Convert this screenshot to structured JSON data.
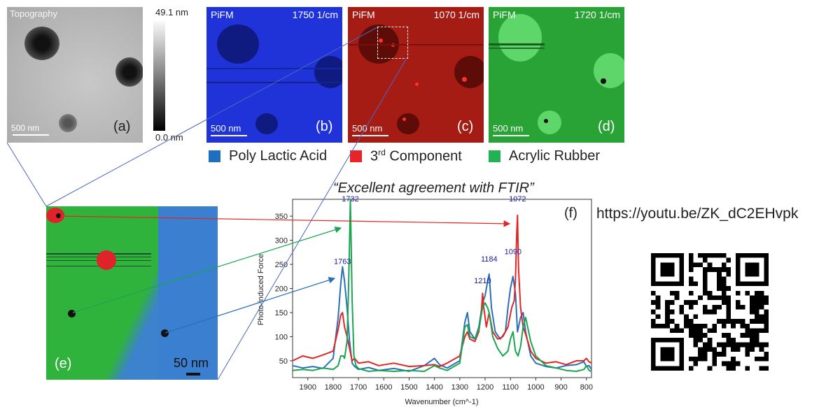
{
  "panels": {
    "a": {
      "title": "Topography",
      "letter": "(a)",
      "scale": "500 nm"
    },
    "colorbar": {
      "max": "49.1 nm",
      "min": "0.0 nm"
    },
    "b": {
      "mode": "PiFM",
      "wavenumber": "1750 1/cm",
      "letter": "(b)",
      "scale": "500 nm",
      "color": "#1a2fd6"
    },
    "c": {
      "mode": "PiFM",
      "wavenumber": "1070 1/cm",
      "letter": "(c)",
      "scale": "500 nm",
      "color": "#a31a12"
    },
    "d": {
      "mode": "PiFM",
      "wavenumber": "1720 1/cm",
      "letter": "(d)",
      "scale": "500 nm",
      "color": "#2ea83a"
    },
    "e": {
      "letter": "(e)",
      "scale": "50 nm"
    }
  },
  "legend": [
    {
      "label": "Poly Lactic Acid",
      "color": "#1f6fc0"
    },
    {
      "label_main": "3",
      "label_sup": "rd",
      "label_rest": " Component",
      "color": "#e8232a"
    },
    {
      "label": "Acrylic Rubber",
      "color": "#22b254"
    }
  ],
  "quote": "“Excellent agreement with FTIR”",
  "youtube_link": "https://youtu.be/ZK_dC2EHvpk",
  "chart_label": "(f)",
  "chart_data": {
    "type": "line",
    "xlabel": "Wavenumber (cm^-1)",
    "ylabel": "Photo-induced Force",
    "xlim": [
      1960,
      780
    ],
    "ylim": [
      15,
      385
    ],
    "xticks": [
      1900,
      1800,
      1700,
      1600,
      1500,
      1400,
      1300,
      1200,
      1100,
      1000,
      900,
      800
    ],
    "yticks": [
      50,
      100,
      150,
      200,
      250,
      300,
      350
    ],
    "peak_labels": [
      {
        "text": "1763",
        "x": 1763,
        "y": 245
      },
      {
        "text": "1732",
        "x": 1732,
        "y": 375
      },
      {
        "text": "1210",
        "x": 1210,
        "y": 205
      },
      {
        "text": "1184",
        "x": 1184,
        "y": 250
      },
      {
        "text": "1090",
        "x": 1090,
        "y": 265
      },
      {
        "text": "1072",
        "x": 1072,
        "y": 375
      }
    ],
    "series": [
      {
        "color": "#2a6fb8",
        "x": [
          1960,
          1920,
          1880,
          1840,
          1800,
          1780,
          1770,
          1763,
          1755,
          1745,
          1735,
          1725,
          1715,
          1700,
          1660,
          1620,
          1560,
          1500,
          1440,
          1400,
          1380,
          1350,
          1300,
          1280,
          1270,
          1260,
          1240,
          1225,
          1210,
          1200,
          1190,
          1184,
          1175,
          1160,
          1140,
          1120,
          1110,
          1100,
          1090,
          1080,
          1072,
          1060,
          1050,
          1040,
          1020,
          1000,
          960,
          920,
          880,
          840,
          810,
          800,
          790,
          780
        ],
        "y": [
          40,
          35,
          38,
          34,
          55,
          140,
          210,
          245,
          215,
          160,
          90,
          45,
          38,
          32,
          36,
          30,
          34,
          28,
          40,
          55,
          42,
          35,
          50,
          130,
          150,
          110,
          95,
          120,
          170,
          185,
          215,
          230,
          160,
          110,
          95,
          110,
          160,
          200,
          225,
          190,
          110,
          140,
          150,
          110,
          60,
          45,
          38,
          35,
          40,
          42,
          48,
          38,
          40,
          32
        ]
      },
      {
        "color": "#e22525",
        "x": [
          1960,
          1920,
          1880,
          1840,
          1800,
          1780,
          1770,
          1763,
          1755,
          1745,
          1735,
          1725,
          1715,
          1700,
          1660,
          1620,
          1560,
          1500,
          1440,
          1400,
          1380,
          1350,
          1300,
          1280,
          1270,
          1260,
          1240,
          1225,
          1215,
          1210,
          1205,
          1195,
          1184,
          1170,
          1150,
          1130,
          1110,
          1095,
          1085,
          1080,
          1075,
          1072,
          1068,
          1060,
          1050,
          1040,
          1020,
          1000,
          960,
          920,
          880,
          840,
          810,
          800,
          790,
          780
        ],
        "y": [
          50,
          60,
          55,
          62,
          70,
          115,
          145,
          150,
          120,
          100,
          75,
          50,
          55,
          45,
          48,
          40,
          45,
          38,
          40,
          42,
          38,
          45,
          60,
          100,
          110,
          95,
          90,
          110,
          150,
          190,
          160,
          120,
          150,
          110,
          95,
          100,
          120,
          160,
          175,
          220,
          320,
          352,
          240,
          160,
          120,
          105,
          70,
          55,
          45,
          48,
          42,
          50,
          50,
          55,
          48,
          45
        ]
      },
      {
        "color": "#1aa550",
        "x": [
          1960,
          1920,
          1880,
          1840,
          1800,
          1780,
          1770,
          1760,
          1755,
          1745,
          1740,
          1735,
          1732,
          1729,
          1725,
          1718,
          1710,
          1700,
          1660,
          1620,
          1560,
          1500,
          1440,
          1400,
          1380,
          1350,
          1300,
          1280,
          1270,
          1260,
          1240,
          1225,
          1210,
          1200,
          1190,
          1184,
          1170,
          1150,
          1130,
          1110,
          1100,
          1090,
          1080,
          1070,
          1060,
          1050,
          1040,
          1020,
          1000,
          960,
          920,
          880,
          840,
          810,
          800,
          790,
          780
        ],
        "y": [
          30,
          32,
          30,
          35,
          32,
          40,
          60,
          60,
          55,
          90,
          180,
          300,
          392,
          300,
          180,
          60,
          40,
          34,
          28,
          30,
          28,
          30,
          28,
          40,
          35,
          30,
          45,
          120,
          125,
          100,
          95,
          115,
          160,
          170,
          160,
          150,
          100,
          75,
          60,
          70,
          95,
          110,
          70,
          60,
          80,
          120,
          140,
          90,
          60,
          40,
          35,
          30,
          28,
          32,
          40,
          30,
          28
        ]
      }
    ]
  }
}
